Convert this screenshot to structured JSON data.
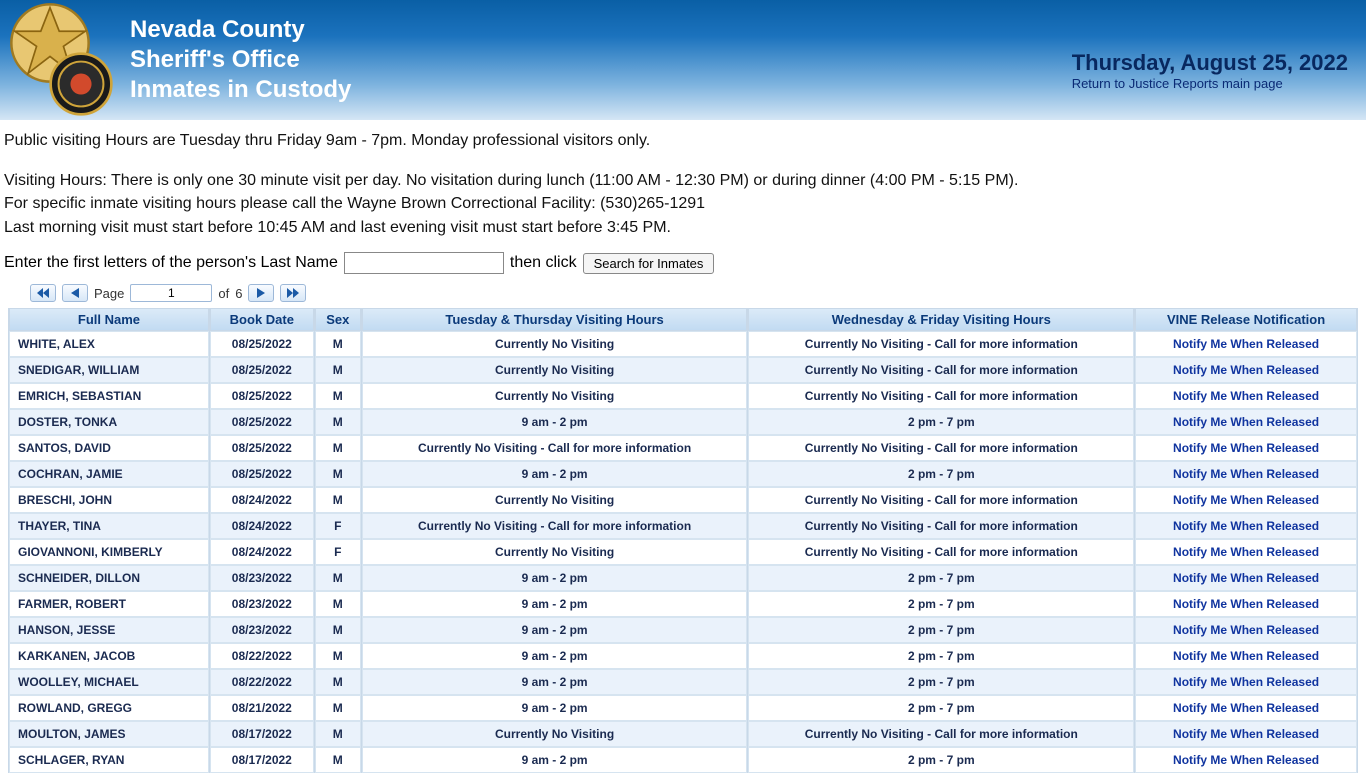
{
  "header": {
    "line1": "Nevada County",
    "line2": "Sheriff's Office",
    "line3": "Inmates in Custody",
    "date_text": "Thursday, August 25, 2022",
    "return_link": "Return to Justice Reports main page",
    "gradient_top": "#0a5fa5",
    "gradient_bottom": "#d5e6f5"
  },
  "info": {
    "p1": "Public visiting Hours are Tuesday thru Friday 9am - 7pm. Monday professional visitors only.",
    "p2": "Visiting Hours:  There is only one 30 minute visit per day.  No visitation during lunch (11:00 AM - 12:30 PM) or during dinner (4:00 PM - 5:15 PM).",
    "p3": "For specific inmate visiting hours please call the Wayne Brown Correctional Facility: (530)265-1291",
    "p4": "Last morning visit must start before 10:45 AM and last evening visit must start before 3:45 PM."
  },
  "search": {
    "label_pre": "Enter the first letters of the person's Last Name",
    "label_post": "then click",
    "button": "Search for Inmates",
    "value": ""
  },
  "pager": {
    "page_label": "Page",
    "of_label": "of",
    "current": "1",
    "total": "6"
  },
  "columns": {
    "c1": "Full Name",
    "c2": "Book Date",
    "c3": "Sex",
    "c4": "Tuesday & Thursday Visiting Hours",
    "c5": "Wednesday & Friday Visiting Hours",
    "c6": "VINE Release Notification"
  },
  "notify_label": "Notify Me When Released",
  "rows": [
    {
      "name": "WHITE, ALEX",
      "date": "08/25/2022",
      "sex": "M",
      "v1": "Currently No Visiting",
      "v2": "Currently No Visiting - Call for more information"
    },
    {
      "name": "SNEDIGAR, WILLIAM",
      "date": "08/25/2022",
      "sex": "M",
      "v1": "Currently No Visiting",
      "v2": "Currently No Visiting - Call for more information"
    },
    {
      "name": "EMRICH, SEBASTIAN",
      "date": "08/25/2022",
      "sex": "M",
      "v1": "Currently No Visiting",
      "v2": "Currently No Visiting - Call for more information"
    },
    {
      "name": "DOSTER, TONKA",
      "date": "08/25/2022",
      "sex": "M",
      "v1": "9 am - 2 pm",
      "v2": "2 pm - 7 pm"
    },
    {
      "name": "SANTOS, DAVID",
      "date": "08/25/2022",
      "sex": "M",
      "v1": "Currently No Visiting - Call for more information",
      "v2": "Currently No Visiting - Call for more information"
    },
    {
      "name": "COCHRAN, JAMIE",
      "date": "08/25/2022",
      "sex": "M",
      "v1": "9 am - 2 pm",
      "v2": "2 pm - 7 pm"
    },
    {
      "name": "BRESCHI, JOHN",
      "date": "08/24/2022",
      "sex": "M",
      "v1": "Currently No Visiting",
      "v2": "Currently No Visiting - Call for more information"
    },
    {
      "name": "THAYER, TINA",
      "date": "08/24/2022",
      "sex": "F",
      "v1": "Currently No Visiting - Call for more information",
      "v2": "Currently No Visiting - Call for more information"
    },
    {
      "name": "GIOVANNONI, KIMBERLY",
      "date": "08/24/2022",
      "sex": "F",
      "v1": "Currently No Visiting",
      "v2": "Currently No Visiting - Call for more information"
    },
    {
      "name": "SCHNEIDER, DILLON",
      "date": "08/23/2022",
      "sex": "M",
      "v1": "9 am - 2 pm",
      "v2": "2 pm - 7 pm"
    },
    {
      "name": "FARMER, ROBERT",
      "date": "08/23/2022",
      "sex": "M",
      "v1": "9 am - 2 pm",
      "v2": "2 pm - 7 pm"
    },
    {
      "name": "HANSON, JESSE",
      "date": "08/23/2022",
      "sex": "M",
      "v1": "9 am - 2 pm",
      "v2": "2 pm - 7 pm"
    },
    {
      "name": "KARKANEN, JACOB",
      "date": "08/22/2022",
      "sex": "M",
      "v1": "9 am - 2 pm",
      "v2": "2 pm - 7 pm"
    },
    {
      "name": "WOOLLEY, MICHAEL",
      "date": "08/22/2022",
      "sex": "M",
      "v1": "9 am - 2 pm",
      "v2": "2 pm - 7 pm"
    },
    {
      "name": "ROWLAND, GREGG",
      "date": "08/21/2022",
      "sex": "M",
      "v1": "9 am - 2 pm",
      "v2": "2 pm - 7 pm"
    },
    {
      "name": "MOULTON, JAMES",
      "date": "08/17/2022",
      "sex": "M",
      "v1": "Currently No Visiting",
      "v2": "Currently No Visiting - Call for more information"
    },
    {
      "name": "SCHLAGER, RYAN",
      "date": "08/17/2022",
      "sex": "M",
      "v1": "9 am - 2 pm",
      "v2": "2 pm - 7 pm"
    }
  ],
  "colors": {
    "header_text": "#ffffff",
    "date_color": "#08285f",
    "link_color": "#0a2a75",
    "th_bg_top": "#dbeaf8",
    "th_bg_bottom": "#c2dbf2",
    "th_text": "#0b3a7a",
    "row_odd": "#ffffff",
    "row_even": "#eaf2fb",
    "cell_text": "#1a2a50",
    "notify_color": "#10349f",
    "grid_border": "#c8d8e8"
  }
}
